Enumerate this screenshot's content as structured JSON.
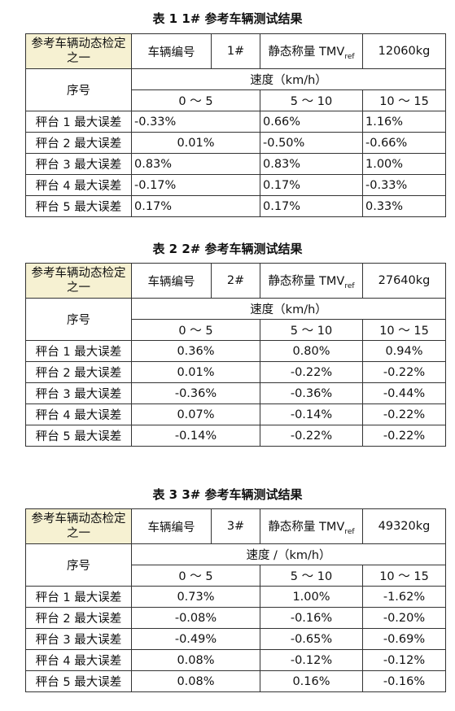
{
  "tables": [
    {
      "caption": "表 1   1# 参考车辆测试结果",
      "header_label": "参考车辆动态检定之一",
      "vehicle_label": "车辆编号",
      "vehicle_id": "1#",
      "static_label": "静态称量 TMV",
      "static_sub": "ref",
      "static_value": "12060kg",
      "seq_label": "序号",
      "speed_label": "速度（km/h）",
      "speed_ranges": [
        "0 ～ 5",
        "5 ～ 10",
        "10 ～ 15"
      ],
      "rows": [
        {
          "label": "秤台 1 最大误差",
          "values": [
            "-0.33%",
            "0.66%",
            "1.16%"
          ]
        },
        {
          "label": "秤台 2 最大误差",
          "values": [
            "0.01%",
            "-0.50%",
            "-0.66%"
          ]
        },
        {
          "label": "秤台 3 最大误差",
          "values": [
            "0.83%",
            "0.83%",
            "1.00%"
          ]
        },
        {
          "label": "秤台 4 最大误差",
          "values": [
            "-0.17%",
            "0.17%",
            "-0.33%"
          ]
        },
        {
          "label": "秤台 5 最大误差",
          "values": [
            "0.17%",
            "0.17%",
            "0.33%"
          ]
        }
      ]
    },
    {
      "caption": "表 2   2# 参考车辆测试结果",
      "header_label": "参考车辆动态检定之一",
      "vehicle_label": "车辆编号",
      "vehicle_id": "2#",
      "static_label": "静态称量 TMV",
      "static_sub": "ref",
      "static_value": "27640kg",
      "seq_label": "序号",
      "speed_label": "速度（km/h）",
      "speed_ranges": [
        "0 ～ 5",
        "5 ～ 10",
        "10 ～ 15"
      ],
      "rows": [
        {
          "label": "秤台 1 最大误差",
          "values": [
            "0.36%",
            "0.80%",
            "0.94%"
          ]
        },
        {
          "label": "秤台 2 最大误差",
          "values": [
            "0.01%",
            "-0.22%",
            "-0.22%"
          ]
        },
        {
          "label": "秤台 3 最大误差",
          "values": [
            "-0.36%",
            "-0.36%",
            "-0.44%"
          ]
        },
        {
          "label": "秤台 4 最大误差",
          "values": [
            "0.07%",
            "-0.14%",
            "-0.22%"
          ]
        },
        {
          "label": "秤台 5 最大误差",
          "values": [
            "-0.14%",
            "-0.22%",
            "-0.22%"
          ]
        }
      ]
    },
    {
      "caption": "表 3   3# 参考车辆测试结果",
      "header_label": "参考车辆动态检定之一",
      "vehicle_label": "车辆编号",
      "vehicle_id": "3#",
      "static_label": "静态称量 TMV",
      "static_sub": "ref",
      "static_value": "49320kg",
      "seq_label": "序号",
      "speed_label": "速度 /（km/h）",
      "speed_ranges": [
        "0 ～ 5",
        "5 ～ 10",
        "10 ～ 15"
      ],
      "rows": [
        {
          "label": "秤台 1 最大误差",
          "values": [
            "0.73%",
            "1.00%",
            "-1.62%"
          ]
        },
        {
          "label": "秤台 2 最大误差",
          "values": [
            "-0.08%",
            "-0.16%",
            "-0.20%"
          ]
        },
        {
          "label": "秤台 3 最大误差",
          "values": [
            "-0.49%",
            "-0.65%",
            "-0.69%"
          ]
        },
        {
          "label": "秤台 4 最大误差",
          "values": [
            "0.08%",
            "-0.12%",
            "-0.12%"
          ]
        },
        {
          "label": "秤台 5 最大误差",
          "values": [
            "0.08%",
            "0.16%",
            "-0.16%"
          ]
        }
      ]
    }
  ]
}
